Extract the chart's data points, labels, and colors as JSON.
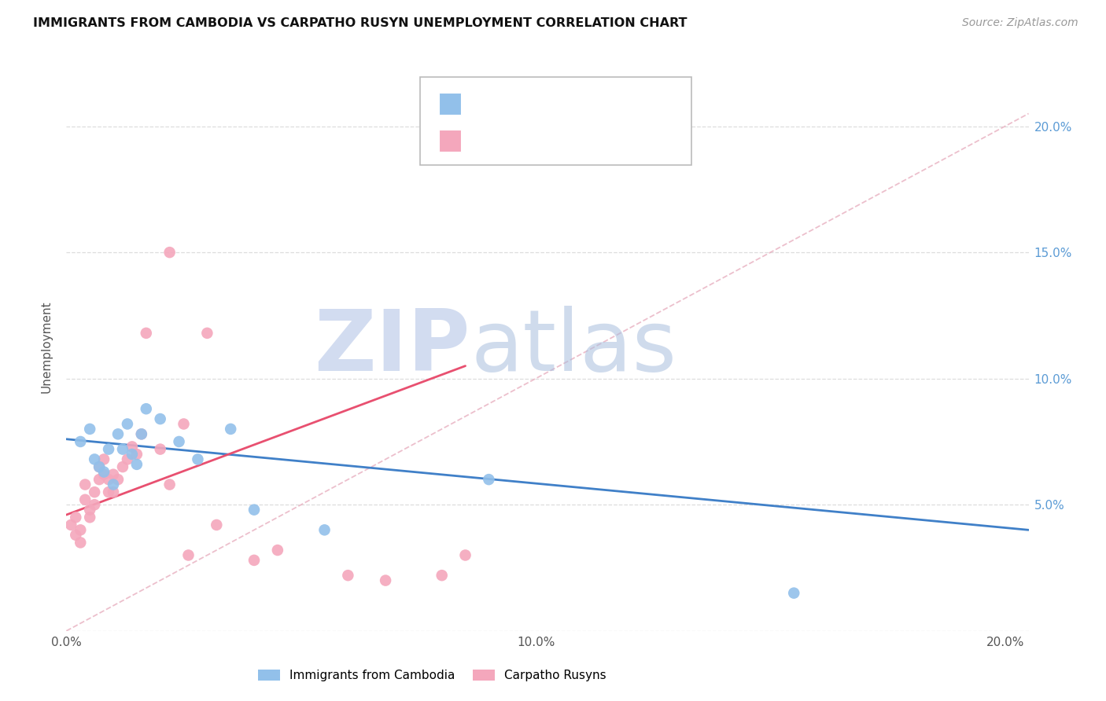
{
  "title": "IMMIGRANTS FROM CAMBODIA VS CARPATHO RUSYN UNEMPLOYMENT CORRELATION CHART",
  "source": "Source: ZipAtlas.com",
  "ylabel": "Unemployment",
  "xlim": [
    0.0,
    0.205
  ],
  "ylim": [
    0.0,
    0.225
  ],
  "xticks": [
    0.0,
    0.05,
    0.1,
    0.15,
    0.2
  ],
  "yticks": [
    0.0,
    0.05,
    0.1,
    0.15,
    0.2
  ],
  "blue_color": "#92C0EA",
  "pink_color": "#F4A7BC",
  "blue_line_color": "#4080C8",
  "pink_line_color": "#E85070",
  "ref_line_color": "#E8B0C0",
  "watermark_zip_color": "#C8D8F0",
  "watermark_atlas_color": "#A8B8D8",
  "blue_dots_x": [
    0.003,
    0.005,
    0.006,
    0.007,
    0.008,
    0.009,
    0.01,
    0.011,
    0.012,
    0.013,
    0.014,
    0.015,
    0.016,
    0.017,
    0.02,
    0.024,
    0.028,
    0.035,
    0.04,
    0.055,
    0.09,
    0.155
  ],
  "blue_dots_y": [
    0.075,
    0.08,
    0.068,
    0.065,
    0.063,
    0.072,
    0.058,
    0.078,
    0.072,
    0.082,
    0.07,
    0.066,
    0.078,
    0.088,
    0.084,
    0.075,
    0.068,
    0.08,
    0.048,
    0.04,
    0.06,
    0.015
  ],
  "pink_dots_x": [
    0.001,
    0.002,
    0.002,
    0.003,
    0.003,
    0.004,
    0.004,
    0.005,
    0.005,
    0.006,
    0.006,
    0.007,
    0.007,
    0.008,
    0.008,
    0.009,
    0.009,
    0.01,
    0.01,
    0.011,
    0.012,
    0.013,
    0.014,
    0.015,
    0.016,
    0.017,
    0.02,
    0.022,
    0.022,
    0.025,
    0.026,
    0.03,
    0.032,
    0.04,
    0.045,
    0.06,
    0.068,
    0.08,
    0.085
  ],
  "pink_dots_y": [
    0.042,
    0.038,
    0.045,
    0.035,
    0.04,
    0.052,
    0.058,
    0.048,
    0.045,
    0.055,
    0.05,
    0.06,
    0.065,
    0.068,
    0.062,
    0.055,
    0.06,
    0.062,
    0.055,
    0.06,
    0.065,
    0.068,
    0.073,
    0.07,
    0.078,
    0.118,
    0.072,
    0.058,
    0.15,
    0.082,
    0.03,
    0.118,
    0.042,
    0.028,
    0.032,
    0.022,
    0.02,
    0.022,
    0.03
  ],
  "blue_trend_x": [
    0.0,
    0.205
  ],
  "blue_trend_y": [
    0.076,
    0.04
  ],
  "pink_trend_x": [
    0.0,
    0.085
  ],
  "pink_trend_y": [
    0.046,
    0.105
  ],
  "ref_line_x": [
    0.0,
    0.205
  ],
  "ref_line_y": [
    0.0,
    0.205
  ]
}
